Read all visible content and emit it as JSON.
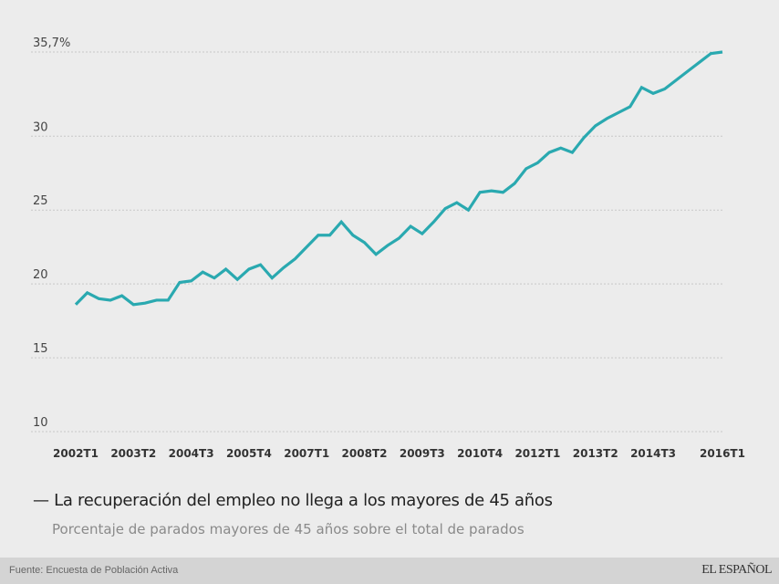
{
  "chart_data": {
    "type": "line",
    "title": "La recuperación del empleo no llega a los mayores de 45 años",
    "subtitle": "Porcentaje de parados mayores de 45 años sobre el total de parados",
    "xlabel": "",
    "ylabel": "",
    "ylim": [
      10,
      35.7
    ],
    "yticks": [
      35.7,
      30,
      25,
      20,
      15,
      10
    ],
    "ytick_labels": [
      "35,7%",
      "30",
      "25",
      "20",
      "15",
      "10"
    ],
    "xtick_labels": [
      "2002T1",
      "2003T2",
      "2004T3",
      "2005T4",
      "2007T1",
      "2008T2",
      "2009T3",
      "2010T4",
      "2012T1",
      "2013T2",
      "2014T3",
      "2016T1"
    ],
    "xtick_indices": [
      0,
      5,
      10,
      15,
      20,
      25,
      30,
      35,
      40,
      45,
      50,
      56
    ],
    "grid": true,
    "color": "#2aa9b0",
    "series": [
      {
        "name": "Parados mayores de 45 años (%)",
        "values": [
          18.6,
          19.4,
          19.0,
          18.9,
          19.2,
          18.6,
          18.7,
          18.9,
          18.9,
          20.1,
          20.2,
          20.8,
          20.4,
          21.0,
          20.3,
          21.0,
          21.3,
          20.4,
          21.1,
          21.7,
          22.5,
          23.3,
          23.3,
          24.2,
          23.3,
          22.8,
          22.0,
          22.6,
          23.1,
          23.9,
          23.4,
          24.2,
          25.1,
          25.5,
          25.0,
          26.2,
          26.3,
          26.2,
          26.8,
          27.8,
          28.2,
          28.9,
          29.2,
          28.9,
          29.9,
          30.7,
          31.2,
          31.6,
          32.0,
          33.3,
          32.9,
          33.2,
          33.8,
          34.4,
          35.0,
          35.6,
          35.7
        ]
      }
    ]
  },
  "legend_dash": "—",
  "footer": {
    "source": "Fuente: Encuesta de Población Activa",
    "brand": "EL ESPAÑOL"
  }
}
